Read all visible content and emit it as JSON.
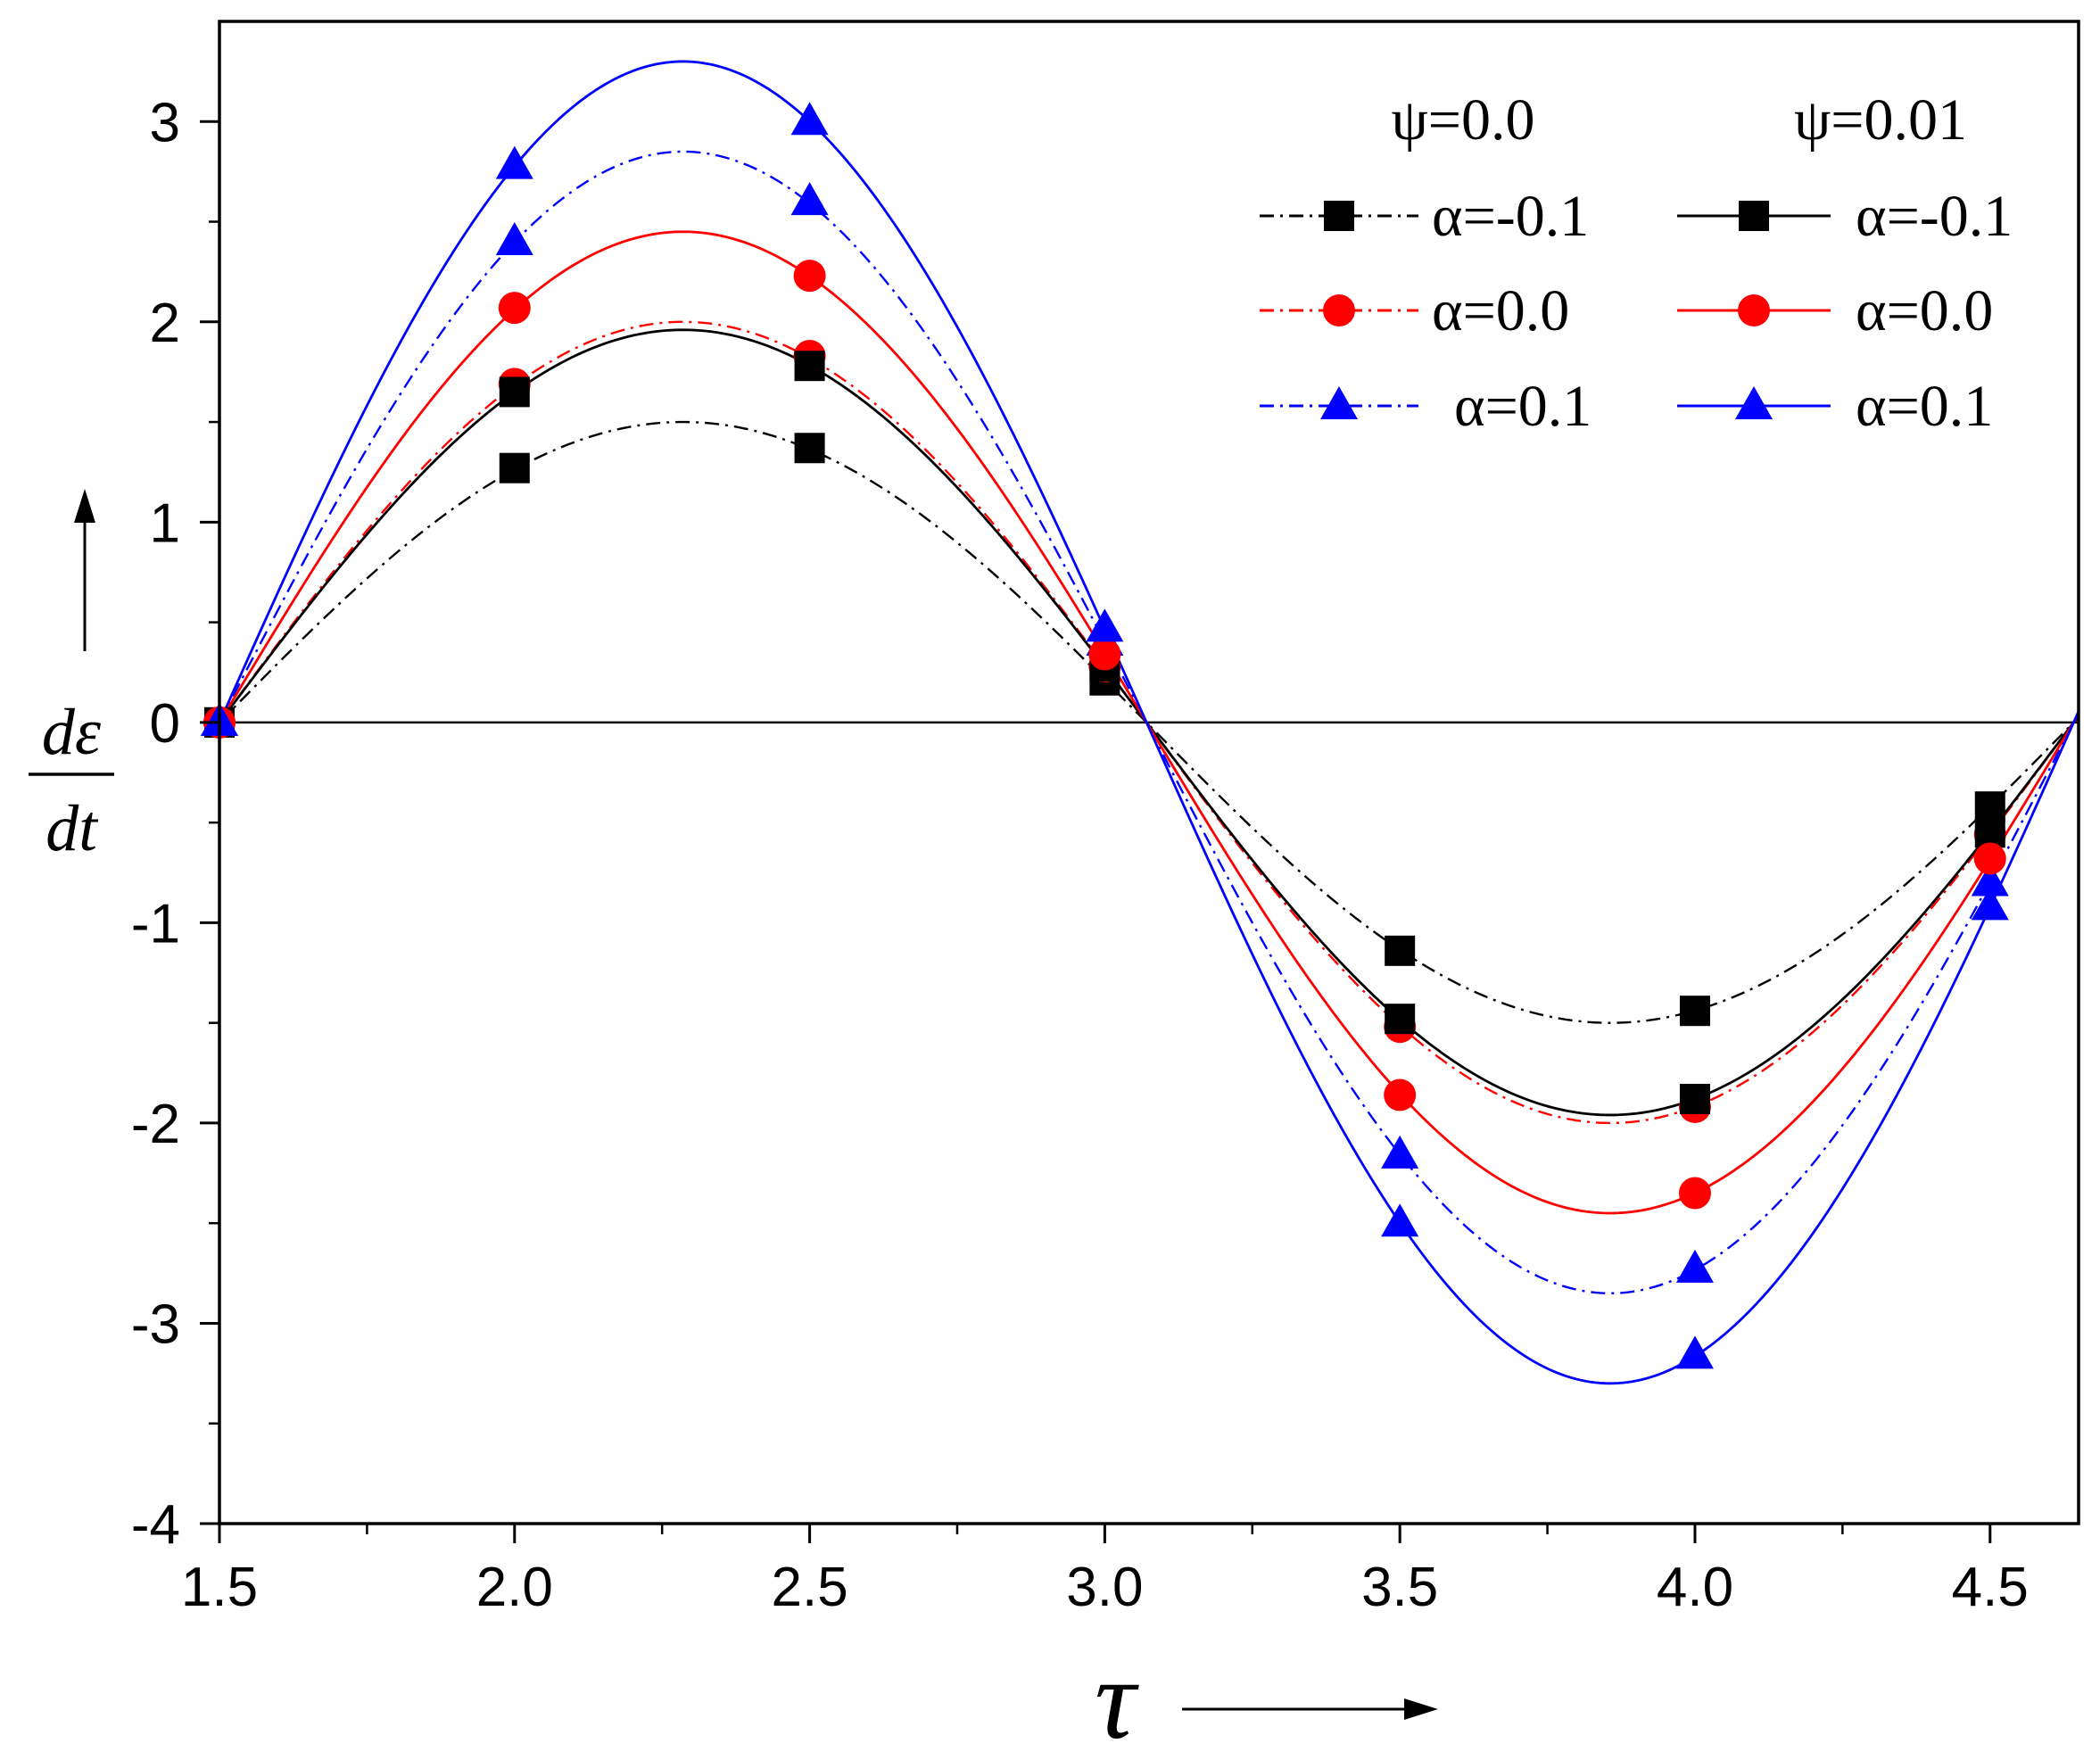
{
  "chart_data": {
    "type": "line",
    "title": "",
    "xlabel": "τ",
    "ylabel_numerator": "dε",
    "ylabel_denominator": "dt",
    "xlim": [
      1.5,
      4.65
    ],
    "ylim": [
      -4,
      3.5
    ],
    "x_ticks": [
      "1.5",
      "2.0",
      "2.5",
      "3.0",
      "3.5",
      "4.0",
      "4.5"
    ],
    "y_ticks": [
      "-4",
      "-3",
      "-2",
      "-1",
      "0",
      "1",
      "2",
      "3"
    ],
    "grid": false,
    "legend": {
      "position": "top-right",
      "headers": [
        "ψ=0.0",
        "ψ=0.01"
      ]
    },
    "curve_model": {
      "function": "A*sin(2*(tau - 1.5))",
      "x_range": [
        1.5,
        4.65
      ]
    },
    "series": [
      {
        "name": "α=-0.1",
        "group": "ψ=0.0",
        "color": "#000000",
        "line_style": "dashdot",
        "marker": "square",
        "amplitude": 1.5,
        "points": [
          [
            1.5,
            0
          ],
          [
            2.0,
            1.27
          ],
          [
            2.5,
            1.37
          ],
          [
            3.0,
            0.21
          ],
          [
            3.5,
            -1.14
          ],
          [
            4.0,
            -1.44
          ],
          [
            4.5,
            -0.42
          ]
        ]
      },
      {
        "name": "α=0.0",
        "group": "ψ=0.0",
        "color": "#ff0000",
        "line_style": "dashdot",
        "marker": "circle",
        "amplitude": 2.0,
        "points": [
          [
            1.5,
            0
          ],
          [
            2.0,
            1.69
          ],
          [
            2.5,
            1.83
          ],
          [
            3.0,
            0.28
          ],
          [
            3.5,
            -1.52
          ],
          [
            4.0,
            -1.92
          ],
          [
            4.5,
            -0.56
          ]
        ]
      },
      {
        "name": "α=0.1",
        "group": "ψ=0.0",
        "color": "#0000ff",
        "line_style": "dashdot",
        "marker": "triangle",
        "amplitude": 2.85,
        "points": [
          [
            1.5,
            0
          ],
          [
            2.0,
            2.4
          ],
          [
            2.5,
            2.6
          ],
          [
            3.0,
            0.4
          ],
          [
            3.5,
            -2.16
          ],
          [
            4.0,
            -2.73
          ],
          [
            4.5,
            -0.8
          ]
        ]
      },
      {
        "name": "α=-0.1",
        "group": "ψ=0.01",
        "color": "#000000",
        "line_style": "solid",
        "marker": "square",
        "amplitude": 1.96,
        "points": [
          [
            1.5,
            0
          ],
          [
            2.0,
            1.65
          ],
          [
            2.5,
            1.78
          ],
          [
            3.0,
            0.28
          ],
          [
            3.5,
            -1.48
          ],
          [
            4.0,
            -1.88
          ],
          [
            4.5,
            -0.55
          ]
        ]
      },
      {
        "name": "α=0.0",
        "group": "ψ=0.01",
        "color": "#ff0000",
        "line_style": "solid",
        "marker": "circle",
        "amplitude": 2.45,
        "points": [
          [
            1.5,
            0
          ],
          [
            2.0,
            2.07
          ],
          [
            2.5,
            2.23
          ],
          [
            3.0,
            0.34
          ],
          [
            3.5,
            -1.86
          ],
          [
            4.0,
            -2.35
          ],
          [
            4.5,
            -0.68
          ]
        ]
      },
      {
        "name": "α=0.1",
        "group": "ψ=0.01",
        "color": "#0000ff",
        "line_style": "solid",
        "marker": "triangle",
        "amplitude": 3.3,
        "points": [
          [
            1.5,
            0
          ],
          [
            2.0,
            2.78
          ],
          [
            2.5,
            3.0
          ],
          [
            3.0,
            0.47
          ],
          [
            3.5,
            -2.5
          ],
          [
            4.0,
            -3.16
          ],
          [
            4.5,
            -0.92
          ]
        ]
      }
    ]
  }
}
